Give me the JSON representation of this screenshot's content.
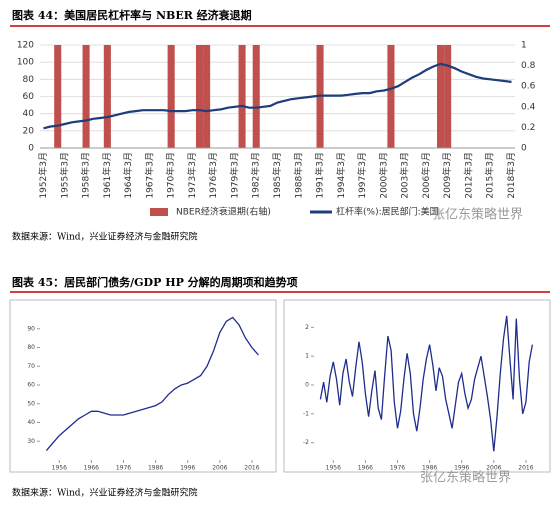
{
  "chart_data": [
    {
      "type": "combo",
      "title": "图表 44：美国居民杠杆率与 NBER 经济衰退期",
      "source": "数据来源：Wind，兴业证券经济与金融研究院",
      "watermark": "张亿东策略世界",
      "categories": [
        "1952年3月",
        null,
        null,
        "1955年3月",
        null,
        null,
        "1958年3月",
        null,
        null,
        "1961年3月",
        null,
        null,
        "1964年3月",
        null,
        null,
        "1967年3月",
        null,
        null,
        "1970年3月",
        null,
        null,
        "1973年3月",
        null,
        null,
        "1976年3月",
        null,
        null,
        "1979年3月",
        null,
        null,
        "1982年3月",
        null,
        null,
        "1985年3月",
        null,
        null,
        "1988年3月",
        null,
        null,
        "1991年3月",
        null,
        null,
        "1994年3月",
        null,
        null,
        "1997年3月",
        null,
        null,
        "2000年3月",
        null,
        null,
        "2003年3月",
        null,
        null,
        "2006年3月",
        null,
        null,
        "2009年3月",
        null,
        null,
        "2012年3月",
        null,
        null,
        "2015年3月",
        null,
        null,
        "2018年3月"
      ],
      "series": [
        {
          "name": "NBER经济衰退期(右轴)",
          "type": "bar",
          "axis": "y2",
          "color": "#c0504d",
          "values": [
            null,
            null,
            1,
            null,
            null,
            null,
            1,
            null,
            null,
            1,
            null,
            null,
            null,
            null,
            null,
            null,
            null,
            null,
            1,
            null,
            null,
            null,
            1,
            1,
            null,
            null,
            null,
            null,
            1,
            null,
            1,
            null,
            null,
            null,
            null,
            null,
            null,
            null,
            null,
            1,
            null,
            null,
            null,
            null,
            null,
            null,
            null,
            null,
            null,
            1,
            null,
            null,
            null,
            null,
            null,
            null,
            1,
            1,
            null,
            null,
            null,
            null,
            null,
            null,
            null,
            null,
            null
          ]
        },
        {
          "name": "杠杆率(%):居民部门:美国",
          "type": "line",
          "color": "#1f3d7a",
          "values": [
            23,
            25,
            26,
            28,
            30,
            31,
            32,
            34,
            35,
            36,
            38,
            40,
            42,
            43,
            44,
            44,
            44,
            44,
            43,
            43,
            43,
            44,
            44,
            43,
            44,
            45,
            47,
            48,
            49,
            47,
            47,
            48,
            49,
            53,
            55,
            57,
            58,
            59,
            60,
            61,
            61,
            61,
            61,
            62,
            63,
            64,
            64,
            66,
            67,
            69,
            72,
            77,
            82,
            86,
            91,
            95,
            98,
            96,
            93,
            89,
            86,
            83,
            81,
            80,
            79,
            78,
            77
          ]
        }
      ],
      "ylim": [
        0,
        120
      ],
      "yticks": [
        0,
        20,
        40,
        60,
        80,
        100,
        120
      ],
      "y2lim": [
        0,
        1
      ],
      "y2ticks": [
        0,
        0.2,
        0.4,
        0.6,
        0.8,
        1
      ],
      "grid": true
    },
    {
      "type": "line",
      "title": "图表 45：居民部门债务/GDP HP 分解的周期项和趋势项",
      "source": "数据来源：Wind，兴业证券经济与金融研究院",
      "color": "#1f2d8c",
      "x": [
        1952,
        1954,
        1956,
        1958,
        1960,
        1962,
        1964,
        1966,
        1968,
        1970,
        1972,
        1974,
        1976,
        1978,
        1980,
        1982,
        1984,
        1986,
        1988,
        1990,
        1992,
        1994,
        1996,
        1998,
        2000,
        2002,
        2004,
        2006,
        2008,
        2010,
        2012,
        2014,
        2016,
        2018
      ],
      "values": [
        25,
        29,
        33,
        36,
        39,
        42,
        44,
        46,
        46,
        45,
        44,
        44,
        44,
        45,
        46,
        47,
        48,
        49,
        51,
        55,
        58,
        60,
        61,
        63,
        65,
        70,
        78,
        88,
        94,
        96,
        92,
        85,
        80,
        76
      ],
      "xlim": [
        1950,
        2021
      ],
      "xticks": [
        1956,
        1966,
        1976,
        1986,
        1996,
        2006,
        2016
      ],
      "ylim": [
        20,
        100
      ],
      "yticks": [
        30,
        40,
        50,
        60,
        70,
        80,
        90
      ]
    },
    {
      "type": "line",
      "watermark": "张亿东策略世界",
      "color": "#1f2d8c",
      "x": [
        1952,
        1953,
        1954,
        1955,
        1956,
        1957,
        1958,
        1959,
        1960,
        1961,
        1962,
        1963,
        1964,
        1965,
        1966,
        1967,
        1968,
        1969,
        1970,
        1971,
        1972,
        1973,
        1974,
        1975,
        1976,
        1977,
        1978,
        1979,
        1980,
        1981,
        1982,
        1983,
        1984,
        1985,
        1986,
        1987,
        1988,
        1989,
        1990,
        1991,
        1992,
        1993,
        1994,
        1995,
        1996,
        1997,
        1998,
        1999,
        2000,
        2001,
        2002,
        2003,
        2004,
        2005,
        2006,
        2007,
        2008,
        2009,
        2010,
        2011,
        2012,
        2013,
        2014,
        2015,
        2016,
        2017,
        2018
      ],
      "values": [
        -0.5,
        0.1,
        -0.6,
        0.3,
        0.8,
        0.2,
        -0.7,
        0.4,
        0.9,
        0.1,
        -0.4,
        0.6,
        1.5,
        0.8,
        -0.3,
        -1.1,
        -0.2,
        0.5,
        -0.8,
        -1.2,
        0.3,
        1.7,
        1.2,
        -0.6,
        -1.5,
        -0.9,
        0.2,
        1.1,
        0.4,
        -1.0,
        -1.6,
        -0.8,
        0.2,
        0.9,
        1.4,
        0.7,
        -0.2,
        0.6,
        0.3,
        -0.5,
        -1.0,
        -1.5,
        -0.7,
        0.1,
        0.4,
        -0.3,
        -0.8,
        -0.5,
        0.2,
        0.6,
        1.0,
        0.3,
        -0.4,
        -1.2,
        -2.3,
        -1.1,
        0.4,
        1.6,
        2.4,
        0.9,
        -0.5,
        2.3,
        0.2,
        -1.0,
        -0.6,
        0.8,
        1.4
      ],
      "xlim": [
        1950,
        2021
      ],
      "xticks": [
        1956,
        1966,
        1976,
        1986,
        1996,
        2006,
        2016
      ],
      "ylim": [
        -2.6,
        2.6
      ],
      "yticks": [
        -2,
        -1,
        0,
        1,
        2
      ]
    }
  ]
}
